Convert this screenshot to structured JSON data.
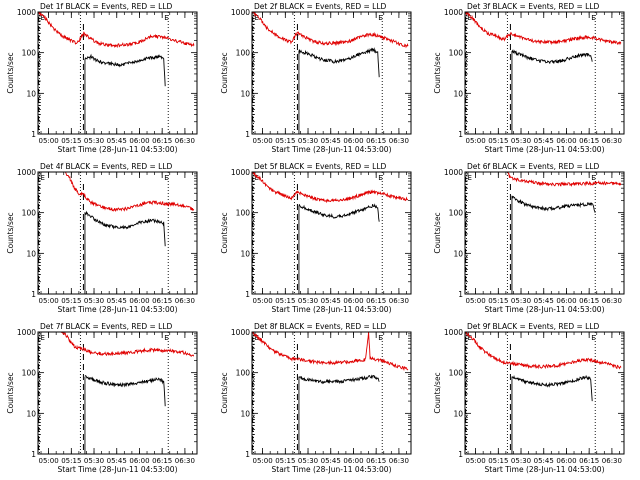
{
  "figure": {
    "ylabel": "Counts/sec",
    "xlabel": "Start Time (28-Jun-11 04:53:00)",
    "xticks": [
      "05:00",
      "05:15",
      "05:30",
      "05:45",
      "06:00",
      "06:15",
      "06:30"
    ],
    "yticks": [
      "1",
      "10",
      "100",
      "1000"
    ],
    "marker_label": "E",
    "colors": {
      "events": "#000000",
      "lld": "#e00000",
      "axis": "#000000",
      "background": "#ffffff"
    }
  },
  "chart_data": [
    {
      "type": "line",
      "title": "Det 1f BLACK = Events, RED = LLD",
      "x_unit": "minutes after 04:53:00",
      "xlim": [
        0,
        105
      ],
      "ylim": [
        1,
        1000
      ],
      "yscale": "log",
      "dotted_lines": [
        1,
        28,
        86
      ],
      "dashed_lines": [
        30
      ],
      "events_start": 30.5,
      "events_end": 84,
      "series": [
        {
          "name": "Events",
          "x": [
            31,
            35,
            40,
            45,
            50,
            55,
            60,
            65,
            70,
            75,
            80,
            83,
            84
          ],
          "y": [
            70,
            80,
            60,
            55,
            52,
            50,
            55,
            60,
            70,
            75,
            80,
            70,
            15
          ]
        },
        {
          "name": "LLD",
          "x": [
            0,
            5,
            10,
            15,
            20,
            23,
            26,
            30,
            35,
            40,
            45,
            50,
            55,
            60,
            65,
            70,
            75,
            80,
            85,
            90,
            95,
            100,
            103
          ],
          "y": [
            1000,
            700,
            400,
            270,
            220,
            190,
            170,
            300,
            220,
            170,
            155,
            150,
            155,
            160,
            175,
            210,
            250,
            250,
            230,
            200,
            180,
            160,
            150
          ]
        }
      ]
    },
    {
      "type": "line",
      "title": "Det 2f BLACK = Events, RED = LLD",
      "x_unit": "minutes after 04:53:00",
      "xlim": [
        0,
        105
      ],
      "ylim": [
        1,
        1000
      ],
      "yscale": "log",
      "dotted_lines": [
        1,
        28,
        86
      ],
      "dashed_lines": [
        30
      ],
      "events_start": 30.5,
      "events_end": 84,
      "series": [
        {
          "name": "Events",
          "x": [
            31,
            35,
            40,
            45,
            50,
            55,
            60,
            65,
            70,
            75,
            80,
            83,
            84
          ],
          "y": [
            110,
            100,
            85,
            70,
            65,
            60,
            65,
            75,
            90,
            100,
            120,
            100,
            25
          ]
        },
        {
          "name": "LLD",
          "x": [
            0,
            5,
            10,
            15,
            20,
            23,
            26,
            30,
            35,
            40,
            45,
            50,
            55,
            60,
            65,
            70,
            75,
            80,
            85,
            90,
            95,
            100,
            103
          ],
          "y": [
            1000,
            700,
            400,
            280,
            230,
            200,
            185,
            320,
            240,
            190,
            175,
            170,
            175,
            180,
            195,
            230,
            270,
            280,
            250,
            210,
            180,
            150,
            145
          ]
        }
      ]
    },
    {
      "type": "line",
      "title": "Det 3f BLACK = Events, RED = LLD",
      "x_unit": "minutes after 04:53:00",
      "xlim": [
        0,
        105
      ],
      "ylim": [
        1,
        1000
      ],
      "yscale": "log",
      "dotted_lines": [
        1,
        28,
        86
      ],
      "dashed_lines": [
        30
      ],
      "events_start": 30.5,
      "events_end": 84,
      "series": [
        {
          "name": "Events",
          "x": [
            31,
            35,
            40,
            45,
            50,
            55,
            60,
            65,
            70,
            75,
            80,
            83,
            84
          ],
          "y": [
            110,
            95,
            80,
            70,
            62,
            58,
            60,
            65,
            75,
            85,
            90,
            85,
            60
          ]
        },
        {
          "name": "LLD",
          "x": [
            0,
            5,
            10,
            15,
            20,
            23,
            26,
            30,
            35,
            40,
            45,
            50,
            55,
            60,
            65,
            70,
            75,
            80,
            85,
            90,
            95,
            100,
            103
          ],
          "y": [
            1000,
            700,
            420,
            300,
            260,
            230,
            215,
            290,
            250,
            215,
            195,
            185,
            180,
            185,
            195,
            210,
            230,
            240,
            230,
            210,
            190,
            175,
            170
          ]
        }
      ]
    },
    {
      "type": "line",
      "title": "Det 4f BLACK = Events, RED = LLD",
      "x_unit": "minutes after 04:53:00",
      "xlim": [
        0,
        105
      ],
      "ylim": [
        1,
        1000
      ],
      "yscale": "log",
      "dotted_lines": [
        1,
        28,
        86
      ],
      "dashed_lines": [
        30
      ],
      "events_start": 31,
      "events_end": 84,
      "series": [
        {
          "name": "Events",
          "x": [
            31,
            35,
            40,
            45,
            50,
            55,
            60,
            65,
            70,
            75,
            80,
            83,
            84
          ],
          "y": [
            100,
            80,
            60,
            50,
            45,
            42,
            45,
            55,
            60,
            65,
            60,
            55,
            15
          ]
        },
        {
          "name": "LLD",
          "x": [
            0,
            5,
            10,
            15,
            18,
            21,
            24,
            27,
            30,
            35,
            40,
            45,
            50,
            55,
            60,
            65,
            70,
            75,
            80,
            85,
            90,
            95,
            100,
            103
          ],
          "y": [
            1000,
            1000,
            1000,
            1000,
            1000,
            700,
            400,
            300,
            280,
            180,
            150,
            130,
            120,
            120,
            130,
            150,
            170,
            180,
            175,
            165,
            160,
            150,
            130,
            120
          ]
        }
      ]
    },
    {
      "type": "line",
      "title": "Det 5f BLACK = Events, RED = LLD",
      "x_unit": "minutes after 04:53:00",
      "xlim": [
        0,
        105
      ],
      "ylim": [
        1,
        1000
      ],
      "yscale": "log",
      "dotted_lines": [
        1,
        28,
        86
      ],
      "dashed_lines": [
        30
      ],
      "events_start": 30.5,
      "events_end": 84,
      "series": [
        {
          "name": "Events",
          "x": [
            31,
            35,
            40,
            45,
            50,
            55,
            60,
            65,
            70,
            75,
            80,
            83,
            84
          ],
          "y": [
            150,
            130,
            110,
            95,
            85,
            80,
            85,
            95,
            110,
            130,
            150,
            130,
            60
          ]
        },
        {
          "name": "LLD",
          "x": [
            0,
            5,
            10,
            15,
            20,
            23,
            26,
            30,
            35,
            40,
            45,
            50,
            55,
            60,
            65,
            70,
            75,
            80,
            85,
            90,
            95,
            100,
            103
          ],
          "y": [
            1000,
            700,
            450,
            330,
            280,
            250,
            230,
            320,
            270,
            230,
            210,
            200,
            205,
            210,
            225,
            260,
            300,
            320,
            300,
            270,
            240,
            220,
            210
          ]
        }
      ]
    },
    {
      "type": "line",
      "title": "Det 6f BLACK = Events, RED = LLD",
      "x_unit": "minutes after 04:53:00",
      "xlim": [
        0,
        105
      ],
      "ylim": [
        1,
        1000
      ],
      "yscale": "log",
      "dotted_lines": [
        1,
        28,
        86
      ],
      "dashed_lines": [
        30
      ],
      "events_start": 31,
      "events_end": 86,
      "series": [
        {
          "name": "Events",
          "x": [
            31,
            35,
            40,
            45,
            50,
            55,
            60,
            65,
            70,
            75,
            80,
            84,
            86
          ],
          "y": [
            250,
            200,
            160,
            140,
            130,
            125,
            130,
            140,
            150,
            155,
            160,
            170,
            100
          ]
        },
        {
          "name": "LLD",
          "x": [
            0,
            5,
            10,
            15,
            20,
            23,
            26,
            28,
            30,
            35,
            40,
            45,
            50,
            55,
            60,
            65,
            70,
            75,
            80,
            85,
            90,
            95,
            100,
            103
          ],
          "y": [
            1000,
            1000,
            1000,
            1000,
            1000,
            1000,
            1000,
            1000,
            700,
            650,
            600,
            560,
            530,
            510,
            500,
            500,
            500,
            510,
            520,
            530,
            540,
            530,
            520,
            510
          ]
        }
      ]
    },
    {
      "type": "line",
      "title": "Det 7f BLACK = Events, RED = LLD",
      "x_unit": "minutes after 04:53:00",
      "xlim": [
        0,
        105
      ],
      "ylim": [
        1,
        1000
      ],
      "yscale": "log",
      "dotted_lines": [
        1,
        28,
        86
      ],
      "dashed_lines": [
        30
      ],
      "events_start": 31,
      "events_end": 84,
      "series": [
        {
          "name": "Events",
          "x": [
            31,
            35,
            40,
            45,
            50,
            55,
            60,
            65,
            70,
            75,
            80,
            83,
            84
          ],
          "y": [
            80,
            70,
            60,
            55,
            52,
            50,
            52,
            55,
            60,
            65,
            70,
            60,
            15
          ]
        },
        {
          "name": "LLD",
          "x": [
            0,
            5,
            10,
            15,
            18,
            21,
            24,
            27,
            30,
            35,
            40,
            45,
            50,
            55,
            60,
            65,
            70,
            75,
            80,
            85,
            90,
            95,
            100,
            103
          ],
          "y": [
            1000,
            1000,
            1000,
            1000,
            900,
            600,
            450,
            400,
            380,
            320,
            300,
            290,
            290,
            300,
            310,
            330,
            350,
            360,
            360,
            350,
            340,
            320,
            280,
            260
          ]
        }
      ]
    },
    {
      "type": "line",
      "title": "Det 8f BLACK = Events, RED = LLD",
      "x_unit": "minutes after 04:53:00",
      "xlim": [
        0,
        105
      ],
      "ylim": [
        1,
        1000
      ],
      "yscale": "log",
      "dotted_lines": [
        1,
        28,
        86
      ],
      "dashed_lines": [
        30
      ],
      "events_start": 30.5,
      "events_end": 84,
      "series": [
        {
          "name": "Events",
          "x": [
            31,
            35,
            40,
            45,
            50,
            55,
            60,
            65,
            70,
            75,
            80,
            83,
            84
          ],
          "y": [
            80,
            70,
            65,
            60,
            60,
            60,
            62,
            65,
            70,
            75,
            80,
            75,
            60
          ]
        },
        {
          "name": "LLD",
          "x": [
            0,
            5,
            10,
            15,
            20,
            23,
            26,
            30,
            35,
            40,
            45,
            50,
            55,
            60,
            65,
            70,
            75,
            77,
            78,
            80,
            85,
            90,
            95,
            100,
            103
          ],
          "y": [
            1000,
            700,
            450,
            330,
            270,
            240,
            220,
            220,
            200,
            190,
            180,
            175,
            175,
            180,
            190,
            200,
            210,
            1000,
            230,
            220,
            200,
            170,
            150,
            130,
            120
          ]
        }
      ]
    },
    {
      "type": "line",
      "title": "Det 9f BLACK = Events, RED = LLD",
      "x_unit": "minutes after 04:53:00",
      "xlim": [
        0,
        105
      ],
      "ylim": [
        1,
        1000
      ],
      "yscale": "log",
      "dotted_lines": [
        1,
        28,
        86
      ],
      "dashed_lines": [
        30
      ],
      "events_start": 30.5,
      "events_end": 84,
      "series": [
        {
          "name": "Events",
          "x": [
            31,
            35,
            40,
            45,
            50,
            55,
            60,
            65,
            70,
            75,
            80,
            83,
            84
          ],
          "y": [
            80,
            70,
            60,
            55,
            52,
            50,
            52,
            55,
            60,
            70,
            80,
            70,
            20
          ]
        },
        {
          "name": "LLD",
          "x": [
            0,
            5,
            10,
            15,
            20,
            23,
            26,
            30,
            35,
            40,
            45,
            50,
            55,
            60,
            65,
            70,
            75,
            80,
            85,
            90,
            95,
            100,
            103
          ],
          "y": [
            1000,
            700,
            420,
            290,
            230,
            200,
            180,
            170,
            160,
            150,
            145,
            140,
            145,
            150,
            160,
            180,
            200,
            210,
            200,
            180,
            160,
            140,
            135
          ]
        }
      ]
    }
  ]
}
